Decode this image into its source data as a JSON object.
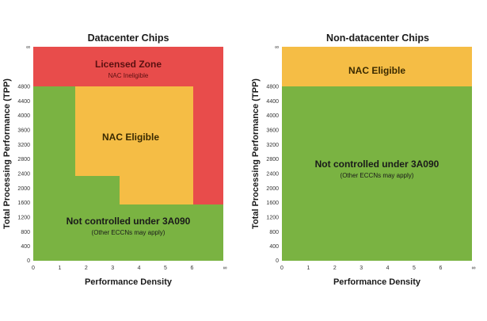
{
  "colors": {
    "red": "#e84c4b",
    "amber": "#f5bd45",
    "green": "#7ab342",
    "dark_text": "#1a1a1a",
    "red_text": "#5a1010",
    "amber_text": "#3a2a00"
  },
  "left_chart": {
    "title": "Datacenter Chips",
    "xlabel": "Performance Density",
    "ylabel": "Total Processing Performance (TPP)",
    "x_ticks": [
      "0",
      "1",
      "2",
      "3",
      "4",
      "5",
      "6",
      "∞"
    ],
    "y_ticks": [
      "400",
      "800",
      "1200",
      "1600",
      "2000",
      "2400",
      "2800",
      "3200",
      "3600",
      "4000",
      "4400",
      "4800",
      "∞"
    ],
    "zones": {
      "licensed": {
        "main": "Licensed Zone",
        "sub": "NAC Ineligible"
      },
      "nac": {
        "main": "NAC Eligible"
      },
      "not_controlled": {
        "main": "Not controlled under 3A090",
        "sub": "(Other ECCNs may apply)"
      }
    }
  },
  "right_chart": {
    "title": "Non-datacenter Chips",
    "xlabel": "Performance Density",
    "ylabel": "Total Processing Performance (TPP)",
    "x_ticks": [
      "0",
      "1",
      "2",
      "3",
      "4",
      "5",
      "6",
      "∞"
    ],
    "y_ticks": [
      "400",
      "800",
      "1200",
      "1600",
      "2000",
      "2400",
      "2800",
      "3200",
      "3600",
      "4000",
      "4400",
      "4800",
      "∞"
    ],
    "zones": {
      "nac": {
        "main": "NAC Eligible"
      },
      "not_controlled": {
        "main": "Not controlled under 3A090",
        "sub": "(Other ECCNs may apply)"
      }
    }
  }
}
